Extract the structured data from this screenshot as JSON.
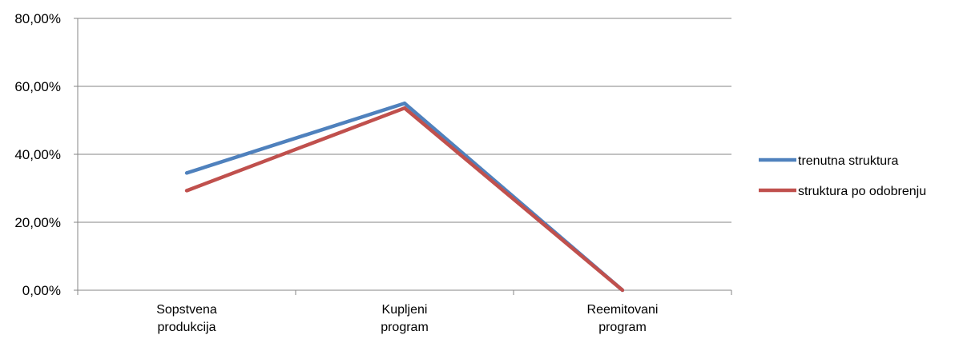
{
  "chart_data": {
    "type": "line",
    "categories": [
      [
        "Sopstvena",
        "produkcija"
      ],
      [
        "Kupljeni",
        "program"
      ],
      [
        "Reemitovani",
        "program"
      ]
    ],
    "series": [
      {
        "name": "trenutna struktura",
        "color": "#4F81BD",
        "values": [
          34.5,
          55.0,
          0.0
        ]
      },
      {
        "name": "struktura po odobrenju",
        "color": "#C0504D",
        "values": [
          29.3,
          53.6,
          0.0
        ]
      }
    ],
    "ylim": [
      0,
      80
    ],
    "yticks": [
      {
        "value": 0,
        "label": "0,00%"
      },
      {
        "value": 20,
        "label": "20,00%"
      },
      {
        "value": 40,
        "label": "40,00%"
      },
      {
        "value": 60,
        "label": "60,00%"
      },
      {
        "value": 80,
        "label": "80,00%"
      }
    ],
    "grid": true,
    "legend_position": "right",
    "title": "",
    "xlabel": "",
    "ylabel": ""
  }
}
